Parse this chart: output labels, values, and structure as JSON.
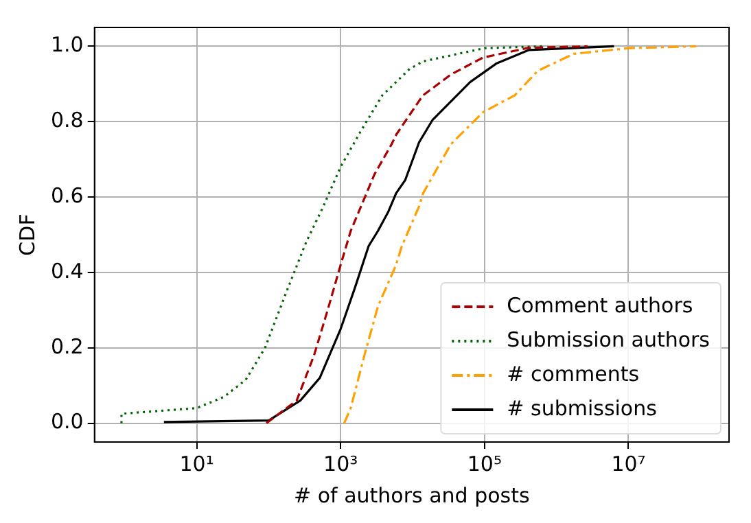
{
  "chart_data": {
    "type": "line",
    "xlabel": "# of authors and posts",
    "ylabel": "CDF",
    "log": "x",
    "grid": true,
    "legend": "bottom right",
    "marker": "none",
    "xlim": [
      0.38,
      250000000
    ],
    "xticks": [
      {
        "value": 10,
        "label": "10¹"
      },
      {
        "value": 1000,
        "label": "10³"
      },
      {
        "value": 100000,
        "label": "10⁵"
      },
      {
        "value": 10000000,
        "label": "10⁷"
      }
    ],
    "ylim": [
      -0.05,
      1.05
    ],
    "yticks": [
      {
        "value": 0,
        "label": "0.0"
      },
      {
        "value": 0.2,
        "label": "0.2"
      },
      {
        "value": 0.4,
        "label": "0.4"
      },
      {
        "value": 0.6,
        "label": "0.6"
      },
      {
        "value": 0.8,
        "label": "0.8"
      },
      {
        "value": 1,
        "label": "1.0"
      }
    ],
    "series": [
      {
        "name": "Comment authors",
        "color": "#aa0000",
        "line_style": "dashed",
        "x": [
          93,
          245,
          427,
          660,
          1000,
          1380,
          2950,
          5100,
          5900,
          12300,
          14000,
          34000,
          95000,
          410000,
          2700000
        ],
        "values": [
          0,
          0.06,
          0.18,
          0.3,
          0.42,
          0.51,
          0.66,
          0.74,
          0.765,
          0.855,
          0.87,
          0.925,
          0.97,
          0.996,
          1.0
        ]
      },
      {
        "name": "Submission authors",
        "color": "#006400",
        "line_style": "dotted",
        "x": [
          0.9,
          0.9,
          10,
          24,
          48,
          89,
          178,
          331,
          575,
          1000,
          1905,
          3800,
          9100,
          14000,
          100000,
          630000
        ],
        "values": [
          0,
          0.025,
          0.04,
          0.07,
          0.115,
          0.2,
          0.35,
          0.48,
          0.575,
          0.68,
          0.775,
          0.87,
          0.94,
          0.96,
          0.995,
          1.0
        ]
      },
      {
        "name": "# comments",
        "color": "#ffa000",
        "line_style": "dashdot",
        "x": [
          1120,
          1380,
          2140,
          3300,
          5900,
          7100,
          12300,
          14000,
          34000,
          95000,
          263000,
          550000,
          1740000,
          10000000,
          87000000
        ],
        "values": [
          0,
          0.04,
          0.18,
          0.31,
          0.42,
          0.47,
          0.575,
          0.61,
          0.74,
          0.825,
          0.87,
          0.935,
          0.98,
          0.995,
          1.0
        ]
      },
      {
        "name": "# submissions",
        "color": "#000000",
        "line_style": "solid",
        "x": [
          3.5,
          100,
          275,
          513,
          1000,
          1585,
          2450,
          3300,
          4570,
          5900,
          7900,
          12300,
          19000,
          63000,
          148000,
          410000,
          6300000
        ],
        "values": [
          0.003,
          0.007,
          0.06,
          0.12,
          0.25,
          0.36,
          0.47,
          0.51,
          0.56,
          0.61,
          0.645,
          0.745,
          0.805,
          0.905,
          0.955,
          0.99,
          1.0
        ]
      }
    ]
  }
}
